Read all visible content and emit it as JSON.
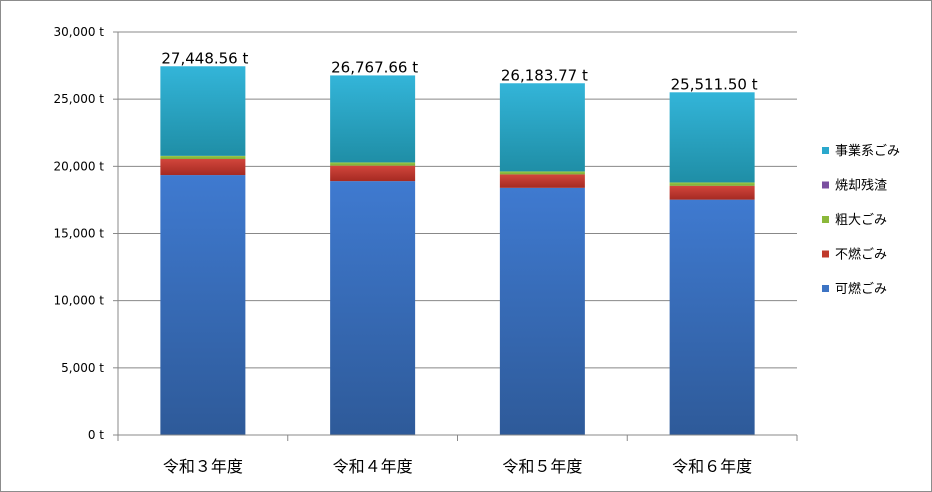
{
  "chart_data": {
    "type": "bar",
    "stacked": true,
    "categories": [
      "令和３年度",
      "令和４年度",
      "令和５年度",
      "令和６年度"
    ],
    "series": [
      {
        "name": "可燃ごみ",
        "color": "#3d74c4",
        "values": [
          19350,
          18900,
          18400,
          17520
        ]
      },
      {
        "name": "不燃ごみ",
        "color": "#c0392b",
        "values": [
          1200,
          1150,
          1000,
          1030
        ]
      },
      {
        "name": "粗大ごみ",
        "color": "#8bb83a",
        "values": [
          230,
          240,
          220,
          250
        ]
      },
      {
        "name": "焼却残渣",
        "color": "#7a4fa0",
        "values": [
          0,
          0,
          0,
          0
        ]
      },
      {
        "name": "事業系ごみ",
        "color": "#2aa8cc",
        "values": [
          6668.56,
          6477.66,
          6563.77,
          6711.5
        ]
      }
    ],
    "totals": [
      "27,448.56 t",
      "26,767.66 t",
      "26,183.77 t",
      "25,511.50 t"
    ],
    "ylim": [
      0,
      30000
    ],
    "yticks": [
      {
        "value": 0,
        "label": "0 t"
      },
      {
        "value": 5000,
        "label": "5,000 t"
      },
      {
        "value": 10000,
        "label": "10,000 t"
      },
      {
        "value": 15000,
        "label": "15,000 t"
      },
      {
        "value": 20000,
        "label": "20,000 t"
      },
      {
        "value": 25000,
        "label": "25,000 t"
      },
      {
        "value": 30000,
        "label": "30,000 t"
      }
    ],
    "legend_order": [
      "事業系ごみ",
      "焼却残渣",
      "粗大ごみ",
      "不燃ごみ",
      "可燃ごみ"
    ],
    "legend_position": "right",
    "grid": true
  }
}
